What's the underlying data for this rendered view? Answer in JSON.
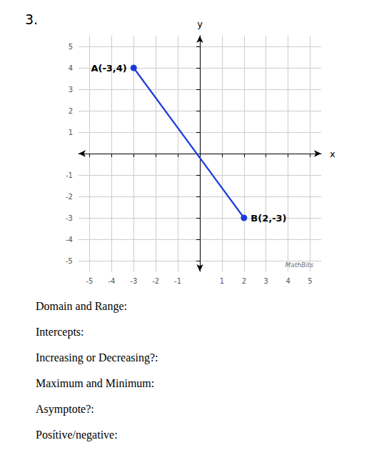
{
  "chart_data": {
    "type": "line",
    "title": "3.",
    "xlabel": "x",
    "ylabel": "y",
    "x": [
      -3,
      2
    ],
    "values": [
      4,
      -3
    ],
    "value_labels": [
      "A(-3,4)",
      "B(2,-3)"
    ],
    "data_labels": true,
    "color": "#1a3adb",
    "marker": "circle",
    "xlim": [
      -5.5,
      5.5
    ],
    "ylim": [
      -5.5,
      5.5
    ],
    "xticks": [
      -5,
      -4,
      -3,
      -2,
      -1,
      {
        "value": 0,
        "label": ""
      },
      1,
      2,
      3,
      4,
      5
    ],
    "yticks": [
      -5,
      -4,
      -3,
      -2,
      -1,
      {
        "value": 0,
        "label": ""
      },
      1,
      2,
      3,
      4,
      5
    ],
    "grid": true,
    "annotations": [
      {
        "text": "MathBits",
        "x": 5.3,
        "y": -5.2
      },
      {
        "text": "Domain and Range:"
      },
      {
        "text": "Intercepts:"
      },
      {
        "text": "Increasing or Decreasing?:"
      },
      {
        "text": "Maximum and Minimum:"
      },
      {
        "text": "Asymptote?:"
      },
      {
        "text": "Posítive/negative:"
      }
    ]
  }
}
